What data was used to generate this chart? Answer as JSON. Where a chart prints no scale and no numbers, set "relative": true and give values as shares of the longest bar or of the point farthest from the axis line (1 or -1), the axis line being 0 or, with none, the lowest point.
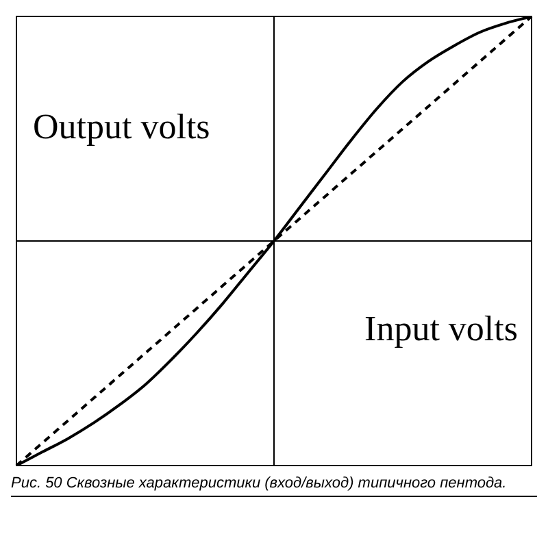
{
  "chart_data": {
    "type": "line",
    "relative": true,
    "categories": [
      null,
      null,
      null,
      null,
      null,
      null,
      null,
      null,
      null,
      null,
      null,
      null,
      null,
      null,
      null,
      null,
      null,
      null,
      null,
      null,
      null
    ],
    "series": [
      {
        "color": "#000000",
        "line_style": "solid",
        "values": [
          -1,
          -0.94,
          -0.88,
          -0.81,
          -0.73,
          -0.64,
          -0.53,
          -0.41,
          -0.28,
          -0.14,
          0,
          0.15,
          0.3,
          0.45,
          0.59,
          0.71,
          0.8,
          0.87,
          0.93,
          0.97,
          1
        ]
      },
      {
        "color": "#000000",
        "line_style": "dashed",
        "values": [
          -1,
          -0.9,
          -0.8,
          -0.7,
          -0.6,
          -0.5,
          -0.4,
          -0.3,
          -0.2,
          -0.1,
          0,
          0.1,
          0.2,
          0.3,
          0.4,
          0.5,
          0.6,
          0.7,
          0.8,
          0.9,
          1
        ]
      }
    ],
    "marker": "none",
    "annotations": [
      "Output volts",
      "Input volts",
      "Рис. 50 Сквозные характеристики (вход/выход) типичного пентода."
    ]
  }
}
